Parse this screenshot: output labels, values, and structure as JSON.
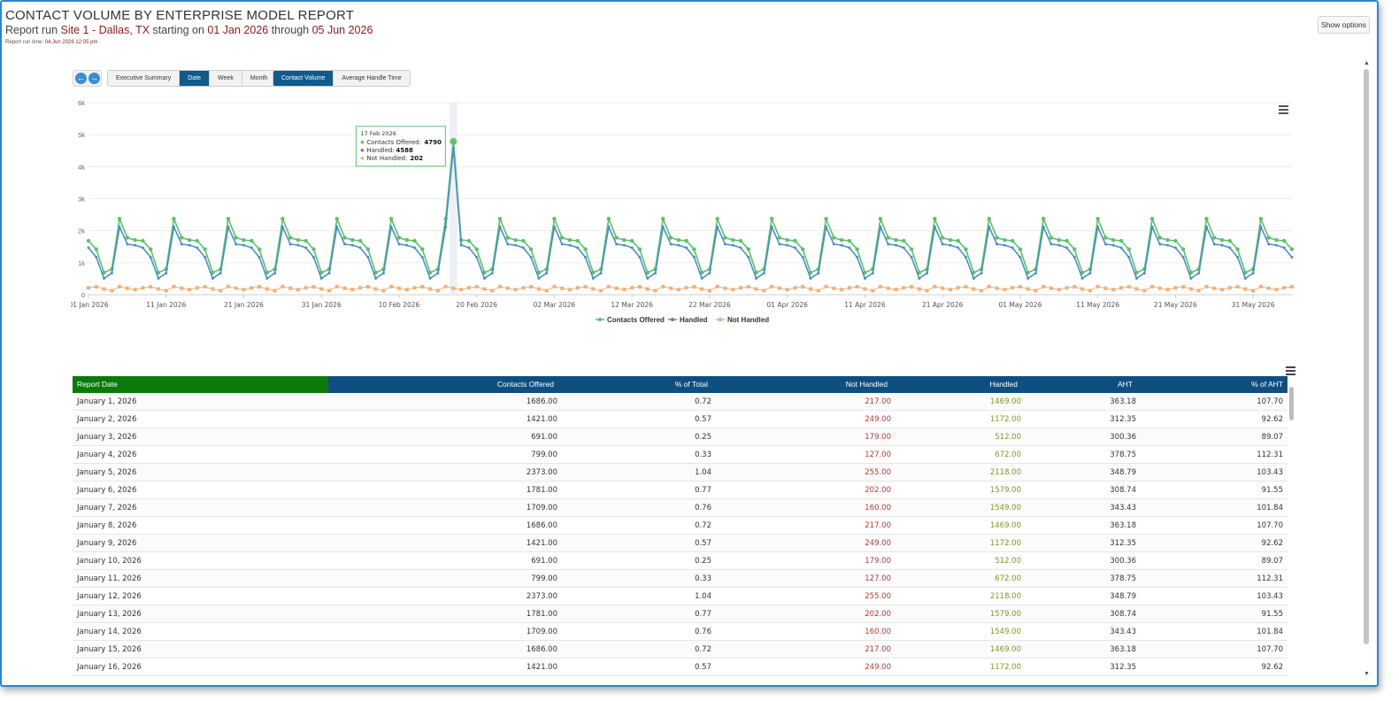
{
  "header": {
    "title": "CONTACT VOLUME BY ENTERPRISE MODEL REPORT",
    "sub_prefix": "Report run",
    "site": "Site 1 - Dallas, TX",
    "starting_on": "starting on",
    "start_date": "01 Jan 2026",
    "through": "through",
    "end_date": "05 Jun 2026",
    "runtime_label": "Report run time:",
    "runtime_value": "04 Jun 2026 12:05 pm"
  },
  "show_options_label": "Show options",
  "toolbar": {
    "prev_icon": "arrow-left-icon",
    "next_icon": "arrow-right-icon",
    "view_buttons": [
      "Executive Summary",
      "Date",
      "Week",
      "Month"
    ],
    "active_view": "Date",
    "metric_buttons": [
      "Contact Volume",
      "Average Handle Time"
    ],
    "active_metric": "Contact Volume"
  },
  "colors": {
    "contacts_offered": "#5cc06c",
    "handled": "#4a8fc0",
    "not_handled": "#f2b077",
    "header_blue": "#0f4f80",
    "header_green": "#0b7a0b",
    "not_handled_text": "#b03a3a",
    "handled_text": "#7a9a22"
  },
  "chart_data": {
    "type": "line",
    "x_start": "2026-01-01",
    "x_end": "2026-06-05",
    "x_ticks": [
      "01 Jan 2026",
      "11 Jan 2026",
      "21 Jan 2026",
      "31 Jan 2026",
      "10 Feb 2026",
      "20 Feb 2026",
      "02 Mar 2026",
      "12 Mar 2026",
      "22 Mar 2026",
      "01 Apr 2026",
      "11 Apr 2026",
      "21 Apr 2026",
      "01 May 2026",
      "11 May 2026",
      "21 May 2026",
      "31 May 2026"
    ],
    "y_ticks": [
      "0",
      "1k",
      "2k",
      "3k",
      "4k",
      "5k",
      "6k"
    ],
    "ylim": [
      0,
      6000
    ],
    "grid": true,
    "legend": "bottom-center",
    "weekly_pattern": {
      "contacts_offered": [
        1686,
        1421,
        691,
        799,
        2373,
        1781,
        1709
      ],
      "handled": [
        1469,
        1172,
        512,
        672,
        2118,
        1579,
        1549
      ],
      "not_handled": [
        217,
        249,
        179,
        127,
        255,
        202,
        160
      ]
    },
    "spike": {
      "date": "2026-02-17",
      "contacts_offered": 4790,
      "handled": 4588,
      "not_handled": 202
    },
    "series": [
      {
        "name": "Contacts Offered",
        "key": "contacts_offered"
      },
      {
        "name": "Handled",
        "key": "handled"
      },
      {
        "name": "Not Handled",
        "key": "not_handled"
      }
    ],
    "tooltip": {
      "date": "17 Feb 2026",
      "rows": [
        {
          "label": "Contacts Offered:",
          "value": "4790"
        },
        {
          "label": "Handled:",
          "value": "4588"
        },
        {
          "label": "Not Handled:",
          "value": "202"
        }
      ]
    }
  },
  "table": {
    "columns": [
      "Report Date",
      "Contacts Offered",
      "% of Total",
      "Not Handled",
      "Handled",
      "AHT",
      "% of AHT"
    ],
    "rows": [
      [
        "January 1, 2026",
        "1686.00",
        "0.72",
        "217.00",
        "1469.00",
        "363.18",
        "107.70"
      ],
      [
        "January 2, 2026",
        "1421.00",
        "0.57",
        "249.00",
        "1172.00",
        "312.35",
        "92.62"
      ],
      [
        "January 3, 2026",
        "691.00",
        "0.25",
        "179.00",
        "512.00",
        "300.36",
        "89.07"
      ],
      [
        "January 4, 2026",
        "799.00",
        "0.33",
        "127.00",
        "672.00",
        "378.75",
        "112.31"
      ],
      [
        "January 5, 2026",
        "2373.00",
        "1.04",
        "255.00",
        "2118.00",
        "348.79",
        "103.43"
      ],
      [
        "January 6, 2026",
        "1781.00",
        "0.77",
        "202.00",
        "1579.00",
        "308.74",
        "91.55"
      ],
      [
        "January 7, 2026",
        "1709.00",
        "0.76",
        "160.00",
        "1549.00",
        "343.43",
        "101.84"
      ],
      [
        "January 8, 2026",
        "1686.00",
        "0.72",
        "217.00",
        "1469.00",
        "363.18",
        "107.70"
      ],
      [
        "January 9, 2026",
        "1421.00",
        "0.57",
        "249.00",
        "1172.00",
        "312.35",
        "92.62"
      ],
      [
        "January 10, 2026",
        "691.00",
        "0.25",
        "179.00",
        "512.00",
        "300.36",
        "89.07"
      ],
      [
        "January 11, 2026",
        "799.00",
        "0.33",
        "127.00",
        "672.00",
        "378.75",
        "112.31"
      ],
      [
        "January 12, 2026",
        "2373.00",
        "1.04",
        "255.00",
        "2118.00",
        "348.79",
        "103.43"
      ],
      [
        "January 13, 2026",
        "1781.00",
        "0.77",
        "202.00",
        "1579.00",
        "308.74",
        "91.55"
      ],
      [
        "January 14, 2026",
        "1709.00",
        "0.76",
        "160.00",
        "1549.00",
        "343.43",
        "101.84"
      ],
      [
        "January 15, 2026",
        "1686.00",
        "0.72",
        "217.00",
        "1469.00",
        "363.18",
        "107.70"
      ],
      [
        "January 16, 2026",
        "1421.00",
        "0.57",
        "249.00",
        "1172.00",
        "312.35",
        "92.62"
      ]
    ]
  }
}
